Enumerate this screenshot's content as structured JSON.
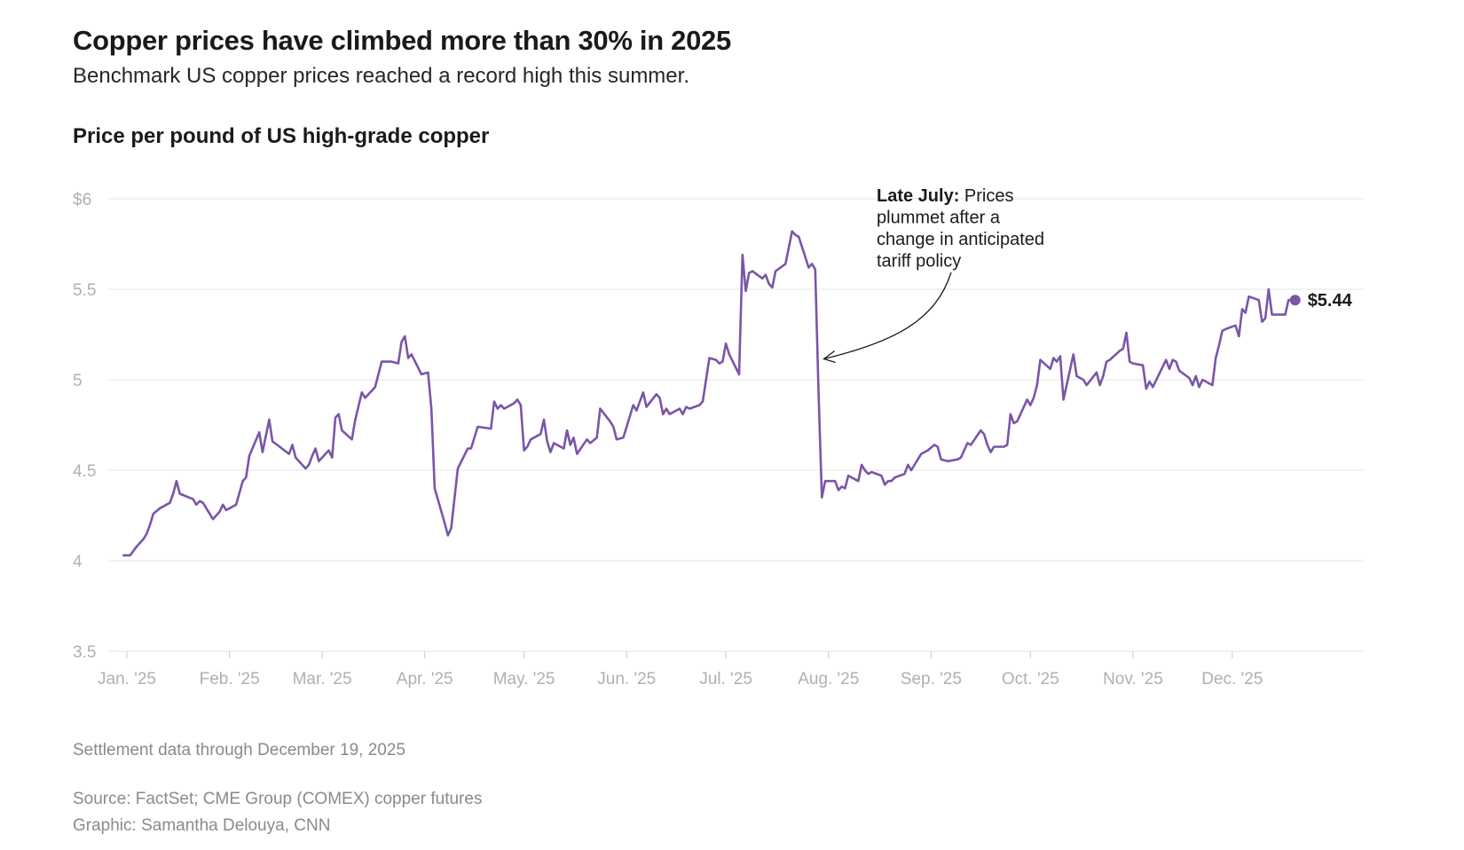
{
  "headline": "Copper prices have climbed more than 30% in 2025",
  "subhead": "Benchmark US copper prices reached a record high this summer.",
  "chart_title": "Price per pound of US high-grade copper",
  "note": "Settlement data through December 19, 2025",
  "source": "Source: FactSet; CME Group (COMEX) copper futures",
  "credit": "Graphic: Samantha Delouya, CNN",
  "colors": {
    "line": "#7b55a8",
    "grid": "#e6e6e6",
    "tick_text": "#b0b0b0",
    "text": "#1a1a1a",
    "muted": "#8a8a8a"
  },
  "chart_data": {
    "type": "line",
    "title": "Price per pound of US high-grade copper",
    "xlabel": "",
    "ylabel": "",
    "ylim": [
      3.5,
      6
    ],
    "y_ticks": [
      {
        "value": 3.5,
        "label": "3.5"
      },
      {
        "value": 4,
        "label": "4"
      },
      {
        "value": 4.5,
        "label": "4.5"
      },
      {
        "value": 5,
        "label": "5"
      },
      {
        "value": 5.5,
        "label": "5.5"
      },
      {
        "value": 6,
        "label": "$6"
      }
    ],
    "x_ticks": [
      {
        "day": 0,
        "label": "Jan. '25"
      },
      {
        "day": 31,
        "label": "Feb. '25"
      },
      {
        "day": 59,
        "label": "Mar. '25"
      },
      {
        "day": 90,
        "label": "Apr. '25"
      },
      {
        "day": 120,
        "label": "May. '25"
      },
      {
        "day": 151,
        "label": "Jun. '25"
      },
      {
        "day": 181,
        "label": "Jul. '25"
      },
      {
        "day": 212,
        "label": "Aug. '25"
      },
      {
        "day": 243,
        "label": "Sep. '25"
      },
      {
        "day": 273,
        "label": "Oct. '25"
      },
      {
        "day": 304,
        "label": "Nov. '25"
      },
      {
        "day": 334,
        "label": "Dec. '25"
      }
    ],
    "grid": true,
    "series": [
      {
        "points": [
          [
            -1,
            4.03
          ],
          [
            1,
            4.03
          ],
          [
            3,
            4.08
          ],
          [
            5,
            4.12
          ],
          [
            6,
            4.15
          ],
          [
            7,
            4.2
          ],
          [
            8,
            4.26
          ],
          [
            10,
            4.29
          ],
          [
            13,
            4.32
          ],
          [
            14,
            4.37
          ],
          [
            15,
            4.44
          ],
          [
            16,
            4.37
          ],
          [
            20,
            4.34
          ],
          [
            21,
            4.31
          ],
          [
            22,
            4.33
          ],
          [
            23,
            4.32
          ],
          [
            26,
            4.23
          ],
          [
            28,
            4.27
          ],
          [
            29,
            4.31
          ],
          [
            30,
            4.28
          ],
          [
            33,
            4.31
          ],
          [
            35,
            4.44
          ],
          [
            36,
            4.46
          ],
          [
            37,
            4.58
          ],
          [
            40,
            4.71
          ],
          [
            41,
            4.6
          ],
          [
            43,
            4.78
          ],
          [
            44,
            4.66
          ],
          [
            49,
            4.59
          ],
          [
            50,
            4.64
          ],
          [
            51,
            4.57
          ],
          [
            54,
            4.51
          ],
          [
            55,
            4.53
          ],
          [
            56,
            4.58
          ],
          [
            57,
            4.62
          ],
          [
            58,
            4.55
          ],
          [
            61,
            4.61
          ],
          [
            62,
            4.57
          ],
          [
            63,
            4.79
          ],
          [
            64,
            4.81
          ],
          [
            65,
            4.72
          ],
          [
            68,
            4.67
          ],
          [
            69,
            4.78
          ],
          [
            71,
            4.93
          ],
          [
            72,
            4.9
          ],
          [
            75,
            4.96
          ],
          [
            77,
            5.1
          ],
          [
            80,
            5.1
          ],
          [
            82,
            5.09
          ],
          [
            83,
            5.21
          ],
          [
            84,
            5.24
          ],
          [
            85,
            5.12
          ],
          [
            86,
            5.14
          ],
          [
            89,
            5.03
          ],
          [
            91,
            5.04
          ],
          [
            92,
            4.84
          ],
          [
            93,
            4.4
          ],
          [
            96,
            4.21
          ],
          [
            97,
            4.14
          ],
          [
            98,
            4.18
          ],
          [
            100,
            4.51
          ],
          [
            103,
            4.62
          ],
          [
            104,
            4.62
          ],
          [
            106,
            4.74
          ],
          [
            110,
            4.73
          ],
          [
            111,
            4.88
          ],
          [
            112,
            4.84
          ],
          [
            113,
            4.86
          ],
          [
            114,
            4.84
          ],
          [
            117,
            4.87
          ],
          [
            118,
            4.89
          ],
          [
            119,
            4.86
          ],
          [
            120,
            4.61
          ],
          [
            121,
            4.63
          ],
          [
            122,
            4.67
          ],
          [
            125,
            4.7
          ],
          [
            126,
            4.78
          ],
          [
            127,
            4.66
          ],
          [
            128,
            4.6
          ],
          [
            129,
            4.65
          ],
          [
            132,
            4.62
          ],
          [
            133,
            4.72
          ],
          [
            134,
            4.64
          ],
          [
            135,
            4.68
          ],
          [
            136,
            4.59
          ],
          [
            139,
            4.67
          ],
          [
            140,
            4.65
          ],
          [
            142,
            4.68
          ],
          [
            143,
            4.84
          ],
          [
            146,
            4.77
          ],
          [
            147,
            4.74
          ],
          [
            148,
            4.67
          ],
          [
            150,
            4.68
          ],
          [
            153,
            4.86
          ],
          [
            154,
            4.83
          ],
          [
            156,
            4.93
          ],
          [
            157,
            4.85
          ],
          [
            160,
            4.92
          ],
          [
            161,
            4.9
          ],
          [
            162,
            4.81
          ],
          [
            163,
            4.84
          ],
          [
            164,
            4.81
          ],
          [
            167,
            4.84
          ],
          [
            168,
            4.81
          ],
          [
            169,
            4.85
          ],
          [
            170,
            4.84
          ],
          [
            173,
            4.86
          ],
          [
            174,
            4.88
          ],
          [
            176,
            5.12
          ],
          [
            178,
            5.11
          ],
          [
            179,
            5.09
          ],
          [
            180,
            5.1
          ],
          [
            181,
            5.2
          ],
          [
            182,
            5.14
          ],
          [
            185,
            5.03
          ],
          [
            186,
            5.69
          ],
          [
            187,
            5.49
          ],
          [
            188,
            5.59
          ],
          [
            189,
            5.6
          ],
          [
            192,
            5.56
          ],
          [
            193,
            5.58
          ],
          [
            194,
            5.53
          ],
          [
            195,
            5.51
          ],
          [
            196,
            5.6
          ],
          [
            199,
            5.64
          ],
          [
            200,
            5.73
          ],
          [
            201,
            5.82
          ],
          [
            202,
            5.8
          ],
          [
            203,
            5.79
          ],
          [
            206,
            5.62
          ],
          [
            207,
            5.64
          ],
          [
            208,
            5.61
          ],
          [
            209,
            4.92
          ],
          [
            210,
            4.35
          ],
          [
            211,
            4.44
          ],
          [
            214,
            4.44
          ],
          [
            215,
            4.39
          ],
          [
            216,
            4.41
          ],
          [
            217,
            4.4
          ],
          [
            218,
            4.47
          ],
          [
            221,
            4.44
          ],
          [
            222,
            4.53
          ],
          [
            223,
            4.5
          ],
          [
            224,
            4.48
          ],
          [
            225,
            4.49
          ],
          [
            228,
            4.47
          ],
          [
            229,
            4.42
          ],
          [
            230,
            4.44
          ],
          [
            231,
            4.44
          ],
          [
            232,
            4.46
          ],
          [
            235,
            4.48
          ],
          [
            236,
            4.53
          ],
          [
            237,
            4.5
          ],
          [
            240,
            4.59
          ],
          [
            242,
            4.61
          ],
          [
            244,
            4.64
          ],
          [
            245,
            4.63
          ],
          [
            246,
            4.56
          ],
          [
            248,
            4.55
          ],
          [
            251,
            4.56
          ],
          [
            252,
            4.57
          ],
          [
            254,
            4.65
          ],
          [
            255,
            4.64
          ],
          [
            258,
            4.72
          ],
          [
            259,
            4.7
          ],
          [
            260,
            4.64
          ],
          [
            261,
            4.6
          ],
          [
            262,
            4.63
          ],
          [
            265,
            4.63
          ],
          [
            266,
            4.64
          ],
          [
            267,
            4.81
          ],
          [
            268,
            4.76
          ],
          [
            269,
            4.77
          ],
          [
            272,
            4.89
          ],
          [
            273,
            4.86
          ],
          [
            274,
            4.9
          ],
          [
            275,
            4.97
          ],
          [
            276,
            5.11
          ],
          [
            279,
            5.06
          ],
          [
            280,
            5.12
          ],
          [
            281,
            5.1
          ],
          [
            282,
            5.13
          ],
          [
            283,
            4.89
          ],
          [
            286,
            5.14
          ],
          [
            287,
            5.02
          ],
          [
            289,
            5.0
          ],
          [
            290,
            4.97
          ],
          [
            293,
            5.04
          ],
          [
            294,
            4.97
          ],
          [
            295,
            5.02
          ],
          [
            296,
            5.1
          ],
          [
            297,
            5.11
          ],
          [
            300,
            5.16
          ],
          [
            301,
            5.17
          ],
          [
            302,
            5.26
          ],
          [
            303,
            5.1
          ],
          [
            304,
            5.09
          ],
          [
            307,
            5.08
          ],
          [
            308,
            4.95
          ],
          [
            309,
            4.99
          ],
          [
            310,
            4.96
          ],
          [
            314,
            5.11
          ],
          [
            315,
            5.06
          ],
          [
            316,
            5.11
          ],
          [
            317,
            5.1
          ],
          [
            318,
            5.05
          ],
          [
            321,
            5.01
          ],
          [
            322,
            4.97
          ],
          [
            323,
            5.02
          ],
          [
            324,
            4.96
          ],
          [
            325,
            5.0
          ],
          [
            328,
            4.97
          ],
          [
            329,
            5.12
          ],
          [
            330,
            5.19
          ],
          [
            331,
            5.27
          ],
          [
            332,
            5.28
          ],
          [
            335,
            5.3
          ],
          [
            336,
            5.24
          ],
          [
            337,
            5.39
          ],
          [
            338,
            5.37
          ],
          [
            339,
            5.46
          ],
          [
            342,
            5.44
          ],
          [
            343,
            5.32
          ],
          [
            344,
            5.34
          ],
          [
            345,
            5.5
          ],
          [
            346,
            5.36
          ],
          [
            350,
            5.36
          ],
          [
            351,
            5.44
          ],
          [
            353,
            5.44
          ]
        ]
      }
    ],
    "end_value": {
      "day": 353,
      "value": 5.44,
      "label": "$5.44"
    },
    "annotation": {
      "day": 209,
      "value": 5.13,
      "lines": [
        {
          "bold": "Late July:",
          "text": " Prices"
        },
        {
          "bold": "",
          "text": "plummet after a"
        },
        {
          "bold": "",
          "text": "change in anticipated"
        },
        {
          "bold": "",
          "text": "tariff policy"
        }
      ]
    }
  }
}
